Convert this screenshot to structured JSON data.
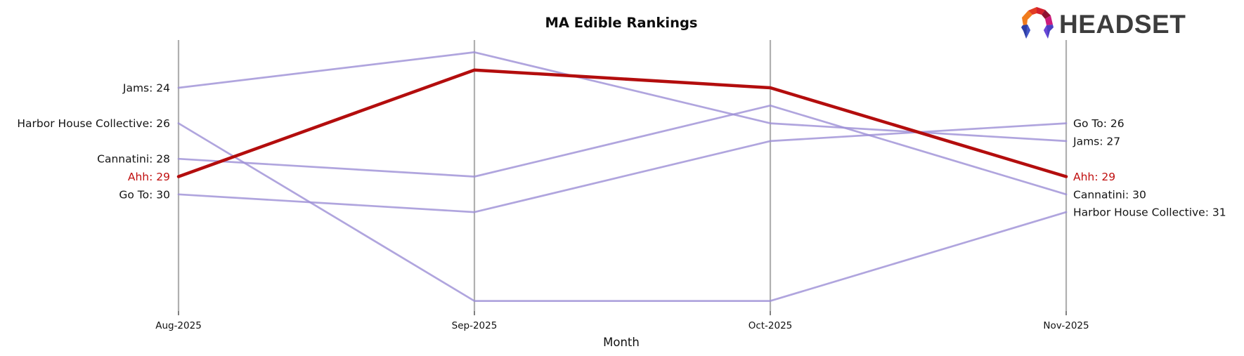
{
  "header": {
    "title": "MA Edible Rankings",
    "logo_text": "HEADSET"
  },
  "chart_data": {
    "type": "line",
    "subtype": "bump-ranking",
    "title": "MA Edible Rankings",
    "xlabel": "Month",
    "categories": [
      "Aug-2025",
      "Sep-2025",
      "Oct-2025",
      "Nov-2025"
    ],
    "series": [
      {
        "name": "Jams",
        "values": [
          24,
          22,
          26,
          27
        ],
        "highlighted": false
      },
      {
        "name": "Harbor House Collective",
        "values": [
          26,
          36,
          36,
          31
        ],
        "highlighted": false
      },
      {
        "name": "Cannatini",
        "values": [
          28,
          29,
          25,
          30
        ],
        "highlighted": false
      },
      {
        "name": "Ahh",
        "values": [
          29,
          23,
          24,
          29
        ],
        "highlighted": true
      },
      {
        "name": "Go To",
        "values": [
          30,
          31,
          27,
          26
        ],
        "highlighted": false
      }
    ],
    "left_labels": [
      "Jams: 24",
      "Harbor House Collective: 26",
      "Cannatini: 28",
      "Ahh: 29",
      "Go To: 30"
    ],
    "right_labels": [
      "Go To: 26",
      "Jams: 27",
      "Ahh: 29",
      "Cannatini: 30",
      "Harbor House Collective: 31"
    ],
    "legend_position": "none",
    "grid": false,
    "colors": {
      "line_default": "#9c8ed6",
      "line_highlight": "#b30d0d",
      "label_highlight": "#c00f0f",
      "label_default": "#141414",
      "axis": "#b0b0b0",
      "tick": "#2a2a2a"
    }
  }
}
